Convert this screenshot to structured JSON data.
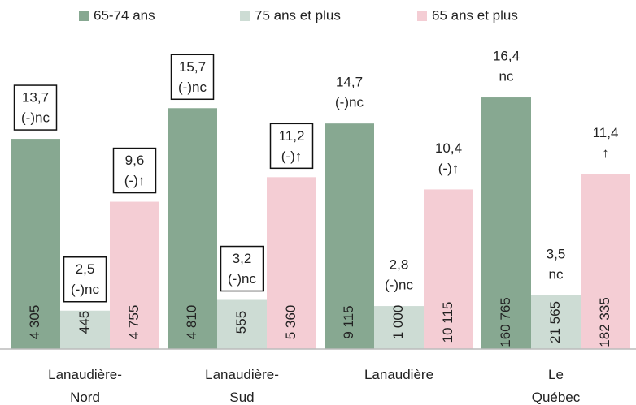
{
  "chart_data": {
    "type": "bar",
    "categories": [
      "Lanaudière-\nNord",
      "Lanaudière-\nSud",
      "Lanaudière",
      "Le\nQuébec"
    ],
    "label_boxed": [
      true,
      true,
      false,
      false
    ],
    "series": [
      {
        "name": "65-74 ans",
        "color": "#87a891",
        "values": [
          13.7,
          15.7,
          14.7,
          16.4
        ],
        "value_labels": [
          "13,7",
          "15,7",
          "14,7",
          "16,4"
        ],
        "notes": [
          "(-)nc",
          "(-)nc",
          "(-)nc",
          "nc"
        ],
        "count_labels": [
          "4 305",
          "4 810",
          "9 115",
          "160 765"
        ]
      },
      {
        "name": "75 ans et plus",
        "color": "#cddcd4",
        "values": [
          2.5,
          3.2,
          2.8,
          3.5
        ],
        "value_labels": [
          "2,5",
          "3,2",
          "2,8",
          "3,5"
        ],
        "notes": [
          "(-)nc",
          "(-)nc",
          "(-)nc",
          "nc"
        ],
        "count_labels": [
          "445",
          "555",
          "1 000",
          "21 565"
        ]
      },
      {
        "name": "65 ans et plus",
        "color": "#f4cdd4",
        "values": [
          9.6,
          11.2,
          10.4,
          11.4
        ],
        "value_labels": [
          "9,6",
          "11,2",
          "10,4",
          "11,4"
        ],
        "notes": [
          "(-)↑",
          "(-)↑",
          "(-)↑",
          "↑"
        ],
        "count_labels": [
          "4 755",
          "5 360",
          "10 115",
          "182 335"
        ]
      }
    ],
    "ylim": [
      0,
      20
    ],
    "legend": "top"
  }
}
